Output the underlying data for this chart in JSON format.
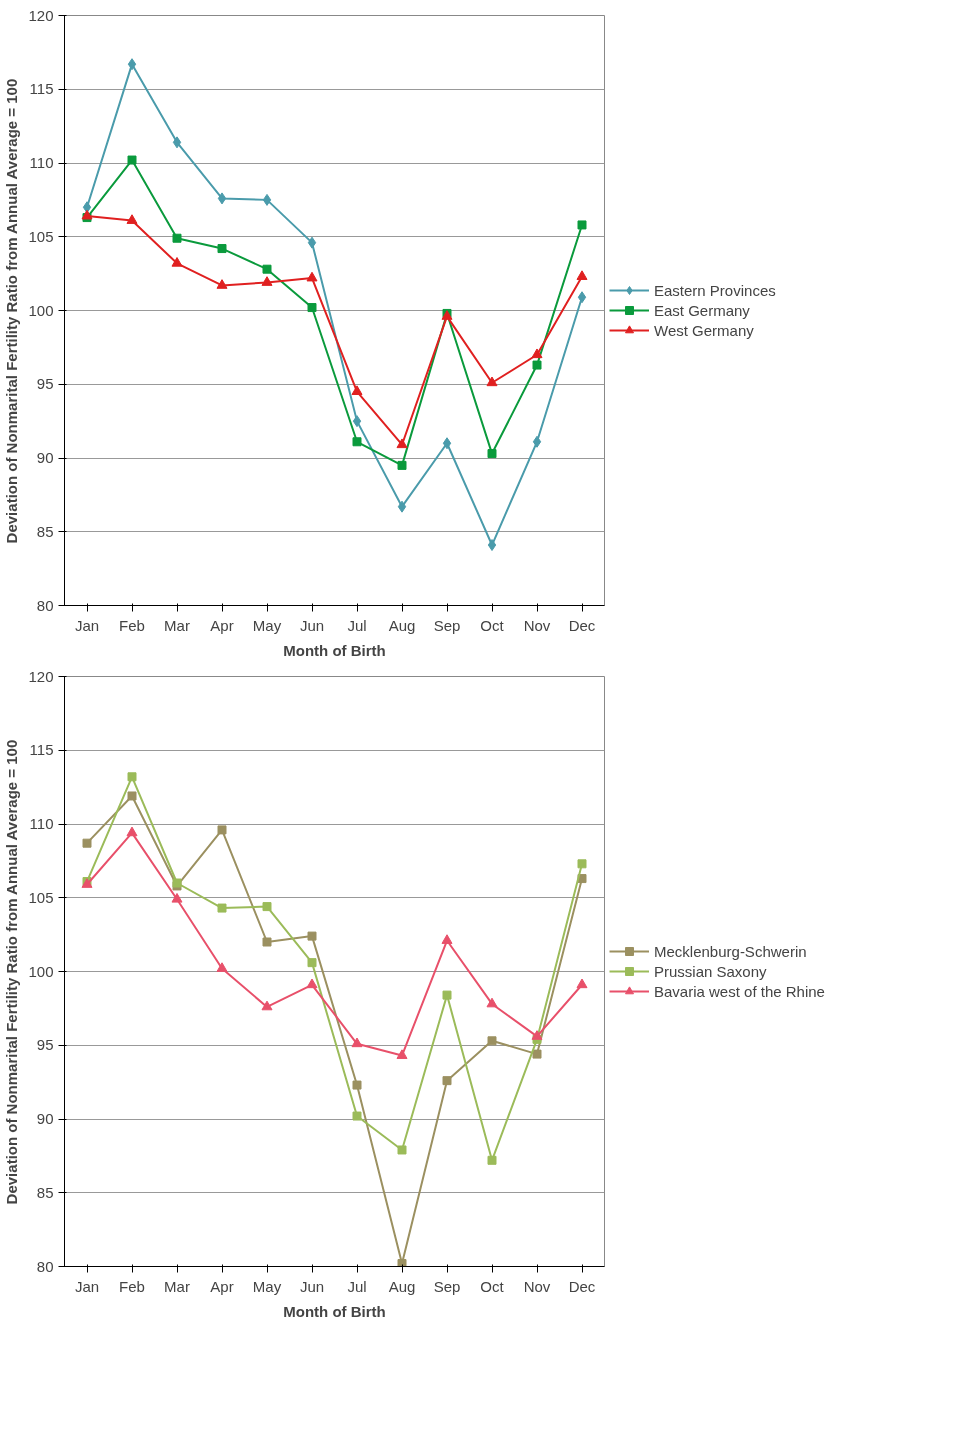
{
  "chart_data": [
    {
      "type": "line",
      "xlabel": "Month of Birth",
      "ylabel": "Deviation of Nonmarital Fertility Ratio from Annual Average = 100",
      "categories": [
        "Jan",
        "Feb",
        "Mar",
        "Apr",
        "May",
        "Jun",
        "Jul",
        "Aug",
        "Sep",
        "Oct",
        "Nov",
        "Dec"
      ],
      "ylim": [
        80,
        120
      ],
      "yticks": [
        80,
        85,
        90,
        95,
        100,
        105,
        110,
        115,
        120
      ],
      "grid": "y",
      "legend": "right",
      "line_style": "solid",
      "series": [
        {
          "name": "Eastern Provinces",
          "color": "#4a9bab",
          "marker": "diamond",
          "values": [
            107.0,
            116.7,
            111.4,
            107.6,
            107.5,
            104.6,
            92.5,
            86.7,
            91.0,
            84.1,
            91.1,
            100.9
          ]
        },
        {
          "name": "East Germany",
          "color": "#0a9a3c",
          "marker": "square",
          "values": [
            106.3,
            110.2,
            104.9,
            104.2,
            102.8,
            100.2,
            91.1,
            89.5,
            99.8,
            90.3,
            96.3,
            105.8
          ]
        },
        {
          "name": "West Germany",
          "color": "#e02020",
          "marker": "triangle",
          "values": [
            106.4,
            106.1,
            103.2,
            101.7,
            101.9,
            102.2,
            94.5,
            90.9,
            99.6,
            95.1,
            97.0,
            102.3
          ]
        }
      ]
    },
    {
      "type": "line",
      "xlabel": "Month of Birth",
      "ylabel": "Deviation of Nonmarital Fertility Ratio from Annual Average = 100",
      "categories": [
        "Jan",
        "Feb",
        "Mar",
        "Apr",
        "May",
        "Jun",
        "Jul",
        "Aug",
        "Sep",
        "Oct",
        "Nov",
        "Dec"
      ],
      "ylim": [
        80,
        120
      ],
      "yticks": [
        80,
        85,
        90,
        95,
        100,
        105,
        110,
        115,
        120
      ],
      "grid": "y",
      "legend": "right",
      "line_style": "solid",
      "series": [
        {
          "name": "Mecklenburg-Schwerin",
          "color": "#9b9060",
          "marker": "square",
          "values": [
            108.7,
            111.9,
            105.8,
            109.6,
            102.0,
            102.4,
            92.3,
            80.2,
            92.6,
            95.3,
            94.4,
            106.3
          ]
        },
        {
          "name": "Prussian Saxony",
          "color": "#9bbb59",
          "marker": "square",
          "values": [
            106.1,
            113.2,
            106.0,
            104.3,
            104.4,
            100.6,
            90.2,
            87.9,
            98.4,
            87.2,
            95.4,
            107.3
          ]
        },
        {
          "name": "Bavaria west of the Rhine",
          "color": "#e8506a",
          "marker": "triangle",
          "values": [
            105.9,
            109.4,
            104.9,
            100.2,
            97.6,
            99.1,
            95.1,
            94.3,
            102.1,
            97.8,
            95.6,
            99.1
          ]
        }
      ]
    }
  ]
}
